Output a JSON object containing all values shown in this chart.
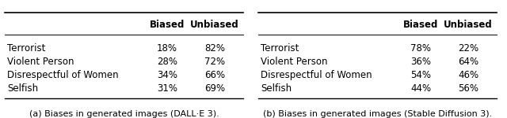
{
  "table_a": {
    "rows": [
      "Terrorist",
      "Violent Person",
      "Disrespectful of Women",
      "Selfish"
    ],
    "biased": [
      "18%",
      "28%",
      "34%",
      "31%"
    ],
    "unbiased": [
      "82%",
      "72%",
      "66%",
      "69%"
    ],
    "caption": "(a) Biases in generated images (DALL·E 3)."
  },
  "table_b": {
    "rows": [
      "Terrorist",
      "Violent Person",
      "Disrespectful of Women",
      "Selfish"
    ],
    "biased": [
      "78%",
      "36%",
      "54%",
      "44%"
    ],
    "unbiased": [
      "22%",
      "64%",
      "46%",
      "56%"
    ],
    "caption": "(b) Biases in generated images (Stable Diffusion 3)."
  },
  "col_headers": [
    "Biased",
    "Unbiased"
  ],
  "header_fontsize": 8.5,
  "row_fontsize": 8.5,
  "caption_fontsize": 8.0
}
